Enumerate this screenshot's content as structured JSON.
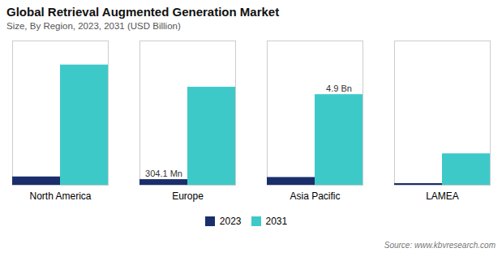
{
  "chart_data": {
    "type": "bar",
    "title": "Global Retrieval Augmented Generation  Market",
    "subtitle": "Size, By Region, 2023, 2031 (USD Billion)",
    "source": "Source: www.kbvresearch.com",
    "categories": [
      "North America",
      "Europe",
      "Asia Pacific",
      "LAMEA"
    ],
    "series": [
      {
        "name": "2023",
        "color": "#1a2e6c",
        "values": [
          0.45,
          0.3041,
          0.42,
          0.09
        ]
      },
      {
        "name": "2031",
        "color": "#3ec9c9",
        "values": [
          6.5,
          5.3,
          4.9,
          1.7
        ]
      }
    ],
    "annotations": [
      {
        "text": "304.1 Mn",
        "category": "Europe",
        "series": "2023"
      },
      {
        "text": "4.9 Bn",
        "category": "Asia Pacific",
        "series": "2031"
      }
    ],
    "ylim": [
      0,
      7.8
    ],
    "grid": false,
    "tick_labels": "x",
    "legend": "bottom"
  }
}
